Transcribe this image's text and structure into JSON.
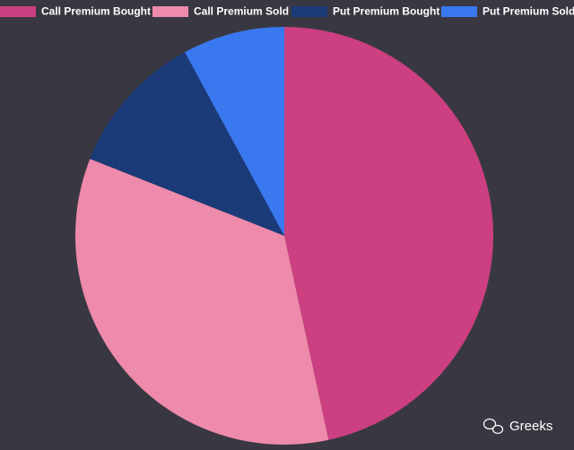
{
  "chart_data": {
    "type": "pie",
    "categories": [
      "Call Premium Bought",
      "Call Premium Sold",
      "Put Premium Bought",
      "Put Premium Sold"
    ],
    "values": [
      46.6,
      34.4,
      11.1,
      7.9
    ],
    "colors": [
      "#cc3f80",
      "#ee8aab",
      "#1b3a78",
      "#3a78f0"
    ],
    "legend": "top",
    "watermark": "Greeks"
  }
}
